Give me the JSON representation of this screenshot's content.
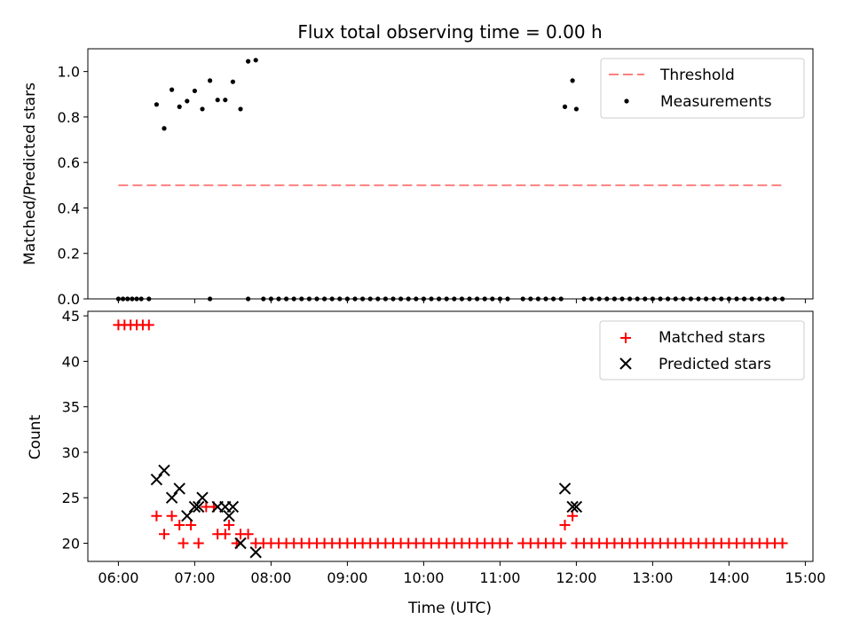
{
  "chart_data": [
    {
      "type": "scatter",
      "title": "Flux total observing time = 0.00 h",
      "xlabel": "",
      "ylabel": "Matched/Predicted stars",
      "x_unit": "hours UTC",
      "xlim": [
        5.6,
        15.1
      ],
      "ylim": [
        0.0,
        1.1
      ],
      "xticks": [
        "06:00",
        "07:00",
        "08:00",
        "09:00",
        "10:00",
        "11:00",
        "12:00",
        "13:00",
        "14:00",
        "15:00"
      ],
      "yticks": [
        "0.0",
        "0.2",
        "0.4",
        "0.6",
        "0.8",
        "1.0"
      ],
      "legend_position": "top-right",
      "threshold": {
        "name": "Threshold",
        "value": 0.5,
        "x_range": [
          6.0,
          14.7
        ],
        "color": "#ff7f7f",
        "style": "dashed"
      },
      "series": [
        {
          "name": "Measurements",
          "color": "#000000",
          "marker": "dot",
          "points": [
            [
              6.0,
              0.0
            ],
            [
              6.06,
              0.0
            ],
            [
              6.12,
              0.0
            ],
            [
              6.18,
              0.0
            ],
            [
              6.24,
              0.0
            ],
            [
              6.3,
              0.0
            ],
            [
              6.4,
              0.0
            ],
            [
              6.5,
              0.855
            ],
            [
              6.6,
              0.75
            ],
            [
              6.7,
              0.92
            ],
            [
              6.8,
              0.845
            ],
            [
              6.9,
              0.87
            ],
            [
              7.0,
              0.915
            ],
            [
              7.1,
              0.835
            ],
            [
              7.2,
              0.96
            ],
            [
              7.3,
              0.875
            ],
            [
              7.4,
              0.875
            ],
            [
              7.5,
              0.955
            ],
            [
              7.6,
              0.835
            ],
            [
              7.7,
              1.045
            ],
            [
              7.8,
              1.05
            ],
            [
              7.2,
              0.0
            ],
            [
              7.7,
              0.0
            ],
            [
              7.9,
              0.0
            ],
            [
              8.0,
              0.0
            ],
            [
              8.1,
              0.0
            ],
            [
              8.2,
              0.0
            ],
            [
              8.3,
              0.0
            ],
            [
              8.4,
              0.0
            ],
            [
              8.5,
              0.0
            ],
            [
              8.6,
              0.0
            ],
            [
              8.7,
              0.0
            ],
            [
              8.8,
              0.0
            ],
            [
              8.9,
              0.0
            ],
            [
              9.0,
              0.0
            ],
            [
              9.1,
              0.0
            ],
            [
              9.2,
              0.0
            ],
            [
              9.3,
              0.0
            ],
            [
              9.4,
              0.0
            ],
            [
              9.5,
              0.0
            ],
            [
              9.6,
              0.0
            ],
            [
              9.7,
              0.0
            ],
            [
              9.8,
              0.0
            ],
            [
              9.9,
              0.0
            ],
            [
              10.0,
              0.0
            ],
            [
              10.1,
              0.0
            ],
            [
              10.2,
              0.0
            ],
            [
              10.3,
              0.0
            ],
            [
              10.4,
              0.0
            ],
            [
              10.5,
              0.0
            ],
            [
              10.6,
              0.0
            ],
            [
              10.7,
              0.0
            ],
            [
              10.8,
              0.0
            ],
            [
              10.9,
              0.0
            ],
            [
              11.0,
              0.0
            ],
            [
              11.1,
              0.0
            ],
            [
              11.3,
              0.0
            ],
            [
              11.4,
              0.0
            ],
            [
              11.5,
              0.0
            ],
            [
              11.6,
              0.0
            ],
            [
              11.7,
              0.0
            ],
            [
              11.8,
              0.0
            ],
            [
              11.85,
              0.845
            ],
            [
              11.95,
              0.96
            ],
            [
              12.0,
              0.835
            ],
            [
              12.1,
              0.0
            ],
            [
              12.2,
              0.0
            ],
            [
              12.3,
              0.0
            ],
            [
              12.4,
              0.0
            ],
            [
              12.5,
              0.0
            ],
            [
              12.6,
              0.0
            ],
            [
              12.7,
              0.0
            ],
            [
              12.8,
              0.0
            ],
            [
              12.9,
              0.0
            ],
            [
              13.0,
              0.0
            ],
            [
              13.1,
              0.0
            ],
            [
              13.2,
              0.0
            ],
            [
              13.3,
              0.0
            ],
            [
              13.4,
              0.0
            ],
            [
              13.5,
              0.0
            ],
            [
              13.6,
              0.0
            ],
            [
              13.7,
              0.0
            ],
            [
              13.8,
              0.0
            ],
            [
              13.9,
              0.0
            ],
            [
              14.0,
              0.0
            ],
            [
              14.1,
              0.0
            ],
            [
              14.2,
              0.0
            ],
            [
              14.3,
              0.0
            ],
            [
              14.4,
              0.0
            ],
            [
              14.5,
              0.0
            ],
            [
              14.6,
              0.0
            ],
            [
              14.7,
              0.0
            ]
          ]
        }
      ]
    },
    {
      "type": "scatter",
      "title": "",
      "xlabel": "Time (UTC)",
      "ylabel": "Count",
      "x_unit": "hours UTC",
      "xlim": [
        5.6,
        15.1
      ],
      "ylim": [
        18,
        45.5
      ],
      "xticks": [
        "06:00",
        "07:00",
        "08:00",
        "09:00",
        "10:00",
        "11:00",
        "12:00",
        "13:00",
        "14:00",
        "15:00"
      ],
      "yticks": [
        "20",
        "25",
        "30",
        "35",
        "40",
        "45"
      ],
      "legend_position": "top-right",
      "series": [
        {
          "name": "Matched stars",
          "color": "#ff0000",
          "marker": "plus",
          "points": [
            [
              6.0,
              44
            ],
            [
              6.08,
              44
            ],
            [
              6.16,
              44
            ],
            [
              6.24,
              44
            ],
            [
              6.32,
              44
            ],
            [
              6.4,
              44
            ],
            [
              6.5,
              23
            ],
            [
              6.6,
              21
            ],
            [
              6.7,
              23
            ],
            [
              6.8,
              22
            ],
            [
              6.85,
              20
            ],
            [
              6.95,
              22
            ],
            [
              7.05,
              20
            ],
            [
              7.15,
              24
            ],
            [
              7.25,
              24
            ],
            [
              7.3,
              21
            ],
            [
              7.4,
              21
            ],
            [
              7.45,
              22
            ],
            [
              7.55,
              20
            ],
            [
              7.6,
              21
            ],
            [
              7.7,
              21
            ],
            [
              7.8,
              20
            ],
            [
              7.9,
              20
            ],
            [
              8.0,
              20
            ],
            [
              8.1,
              20
            ],
            [
              8.2,
              20
            ],
            [
              8.3,
              20
            ],
            [
              8.4,
              20
            ],
            [
              8.5,
              20
            ],
            [
              8.6,
              20
            ],
            [
              8.7,
              20
            ],
            [
              8.8,
              20
            ],
            [
              8.9,
              20
            ],
            [
              9.0,
              20
            ],
            [
              9.1,
              20
            ],
            [
              9.2,
              20
            ],
            [
              9.3,
              20
            ],
            [
              9.4,
              20
            ],
            [
              9.5,
              20
            ],
            [
              9.6,
              20
            ],
            [
              9.7,
              20
            ],
            [
              9.8,
              20
            ],
            [
              9.9,
              20
            ],
            [
              10.0,
              20
            ],
            [
              10.1,
              20
            ],
            [
              10.2,
              20
            ],
            [
              10.3,
              20
            ],
            [
              10.4,
              20
            ],
            [
              10.5,
              20
            ],
            [
              10.6,
              20
            ],
            [
              10.7,
              20
            ],
            [
              10.8,
              20
            ],
            [
              10.9,
              20
            ],
            [
              11.0,
              20
            ],
            [
              11.1,
              20
            ],
            [
              11.3,
              20
            ],
            [
              11.4,
              20
            ],
            [
              11.5,
              20
            ],
            [
              11.6,
              20
            ],
            [
              11.7,
              20
            ],
            [
              11.8,
              20
            ],
            [
              11.85,
              22
            ],
            [
              11.95,
              23
            ],
            [
              12.0,
              20
            ],
            [
              12.1,
              20
            ],
            [
              12.2,
              20
            ],
            [
              12.3,
              20
            ],
            [
              12.4,
              20
            ],
            [
              12.5,
              20
            ],
            [
              12.6,
              20
            ],
            [
              12.7,
              20
            ],
            [
              12.8,
              20
            ],
            [
              12.9,
              20
            ],
            [
              13.0,
              20
            ],
            [
              13.1,
              20
            ],
            [
              13.2,
              20
            ],
            [
              13.3,
              20
            ],
            [
              13.4,
              20
            ],
            [
              13.5,
              20
            ],
            [
              13.6,
              20
            ],
            [
              13.7,
              20
            ],
            [
              13.8,
              20
            ],
            [
              13.9,
              20
            ],
            [
              14.0,
              20
            ],
            [
              14.1,
              20
            ],
            [
              14.2,
              20
            ],
            [
              14.3,
              20
            ],
            [
              14.4,
              20
            ],
            [
              14.5,
              20
            ],
            [
              14.6,
              20
            ],
            [
              14.7,
              20
            ]
          ]
        },
        {
          "name": "Predicted stars",
          "color": "#000000",
          "marker": "x",
          "points": [
            [
              6.5,
              27
            ],
            [
              6.6,
              28
            ],
            [
              6.7,
              25
            ],
            [
              6.8,
              26
            ],
            [
              6.9,
              23
            ],
            [
              7.0,
              24
            ],
            [
              7.05,
              24
            ],
            [
              7.1,
              25
            ],
            [
              7.3,
              24
            ],
            [
              7.4,
              24
            ],
            [
              7.45,
              23
            ],
            [
              7.5,
              24
            ],
            [
              7.6,
              20
            ],
            [
              7.8,
              19
            ],
            [
              11.85,
              26
            ],
            [
              11.95,
              24
            ],
            [
              12.0,
              24
            ]
          ]
        }
      ]
    }
  ]
}
